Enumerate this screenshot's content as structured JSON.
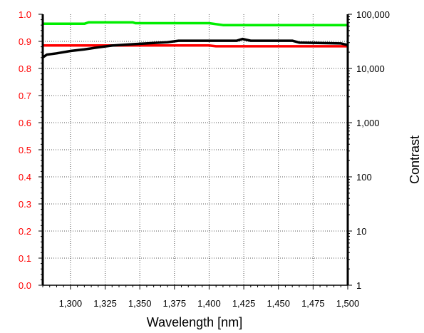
{
  "chart_data": {
    "type": "line",
    "title": "",
    "xlabel": "Wavelength [nm]",
    "ylabel_left": "",
    "ylabel_right": "Contrast",
    "xlim": [
      1280,
      1500
    ],
    "ylim_left": [
      0.0,
      1.0
    ],
    "ylim_right": [
      1,
      100000
    ],
    "right_axis_scale": "log",
    "grid": true,
    "x_ticks": [
      1300,
      1325,
      1350,
      1375,
      1400,
      1425,
      1450,
      1475,
      1500
    ],
    "x_tick_labels": [
      "1,300",
      "1,325",
      "1,350",
      "1,375",
      "1,400",
      "1,425",
      "1,450",
      "1,475",
      "1,500"
    ],
    "y_left_ticks": [
      0.0,
      0.1,
      0.2,
      0.3,
      0.4,
      0.5,
      0.6,
      0.7,
      0.8,
      0.9,
      1.0
    ],
    "y_left_tick_labels": [
      "0.0",
      "0.1",
      "0.2",
      "0.3",
      "0.4",
      "0.5",
      "0.6",
      "0.7",
      "0.8",
      "0.9",
      "1.0"
    ],
    "y_right_ticks": [
      1,
      10,
      100,
      1000,
      10000,
      100000
    ],
    "y_right_tick_labels": [
      "1",
      "10",
      "100",
      "1,000",
      "10,000",
      "100,000"
    ],
    "colors": {
      "left_axis": "#ff0000",
      "right_axis": "#000000",
      "grid": "#555555"
    },
    "series": [
      {
        "color": "#00ee00",
        "axis": "left",
        "x": [
          1280,
          1310,
          1313,
          1345,
          1347,
          1400,
          1410,
          1500
        ],
        "y": [
          0.965,
          0.965,
          0.97,
          0.97,
          0.967,
          0.967,
          0.96,
          0.96
        ]
      },
      {
        "color": "#ff0000",
        "axis": "left",
        "x": [
          1280,
          1400,
          1405,
          1500
        ],
        "y": [
          0.885,
          0.885,
          0.882,
          0.882
        ]
      },
      {
        "color": "#000000",
        "axis": "right",
        "x": [
          1280,
          1283,
          1290,
          1300,
          1310,
          1320,
          1330,
          1345,
          1360,
          1370,
          1378,
          1400,
          1420,
          1424,
          1430,
          1460,
          1465,
          1495,
          1500
        ],
        "y": [
          16000,
          18000,
          19000,
          21000,
          22500,
          24500,
          26500,
          28000,
          29500,
          30500,
          32500,
          32500,
          32500,
          35000,
          32500,
          32500,
          30000,
          29000,
          27000
        ]
      }
    ]
  }
}
